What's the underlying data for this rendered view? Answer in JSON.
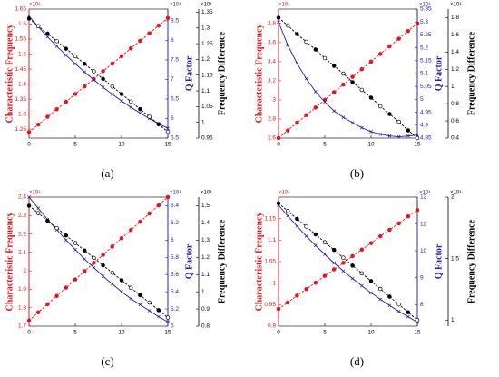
{
  "chart_data": [
    {
      "type": "line",
      "label": "(a)",
      "ylabel": "Characteristic Frequency",
      "y2label": "Q Factor",
      "y3label": "Frequency Difference",
      "ymultiplier": "×10⁴",
      "y2multiplier": "×10⁴",
      "y3multiplier": "×10⁴",
      "x": [
        0,
        1,
        2,
        3,
        4,
        5,
        6,
        7,
        8,
        9,
        10,
        11,
        12,
        13,
        14,
        15
      ],
      "xlim": [
        0,
        15
      ],
      "xticks": [
        0,
        5,
        10,
        15
      ],
      "ylim": [
        1.22,
        1.65
      ],
      "yticks": [
        1.25,
        1.3,
        1.35,
        1.4,
        1.45,
        1.5,
        1.55,
        1.6,
        1.65
      ],
      "y2lim": [
        5.5,
        8.8
      ],
      "y2ticks": [
        5.5,
        6,
        6.5,
        7,
        7.5,
        8,
        8.5
      ],
      "y3lim": [
        0.95,
        1.36
      ],
      "y3ticks": [
        0.95,
        1,
        1.05,
        1.1,
        1.15,
        1.2,
        1.25,
        1.3,
        1.35
      ],
      "series": [
        {
          "color": "#e8141b",
          "axis": "y",
          "values": [
            1.24,
            1.265,
            1.291,
            1.316,
            1.341,
            1.367,
            1.392,
            1.417,
            1.443,
            1.468,
            1.493,
            1.519,
            1.544,
            1.569,
            1.595,
            1.62
          ]
        },
        {
          "color": "#1d1db8",
          "axis": "y2",
          "values": [
            8.62,
            8.35,
            8.09,
            7.85,
            7.62,
            7.4,
            7.19,
            6.99,
            6.8,
            6.62,
            6.45,
            6.29,
            6.14,
            6.0,
            5.87,
            5.75
          ]
        },
        {
          "color": "#000000",
          "axis": "y3",
          "values": [
            1.33,
            1.306,
            1.282,
            1.258,
            1.234,
            1.21,
            1.186,
            1.162,
            1.138,
            1.114,
            1.09,
            1.066,
            1.042,
            1.018,
            0.994,
            0.97
          ]
        }
      ]
    },
    {
      "type": "line",
      "label": "(b)",
      "ylabel": "Characteristic Frequency",
      "y2label": "Q Factor",
      "y3label": "Frequency Difference",
      "ymultiplier": "×10⁴",
      "y2multiplier": "×10⁴",
      "y3multiplier": "×10⁴",
      "x": [
        0,
        1,
        2,
        3,
        4,
        5,
        6,
        7,
        8,
        9,
        10,
        11,
        12,
        13,
        14,
        15
      ],
      "xlim": [
        0,
        15
      ],
      "xticks": [
        0,
        5,
        10,
        15
      ],
      "ylim": [
        2.6,
        3.95
      ],
      "yticks": [
        2.6,
        2.8,
        3,
        3.2,
        3.4,
        3.6,
        3.8
      ],
      "y2lim": [
        4.85,
        5.35
      ],
      "y2ticks": [
        4.85,
        4.9,
        4.95,
        5,
        5.05,
        5.1,
        5.15,
        5.2,
        5.25,
        5.3,
        5.35
      ],
      "y3lim": [
        0.4,
        1.9
      ],
      "y3ticks": [
        0.4,
        0.6,
        0.8,
        1,
        1.2,
        1.4,
        1.6,
        1.8
      ],
      "series": [
        {
          "color": "#e8141b",
          "axis": "y",
          "values": [
            2.6,
            2.68,
            2.76,
            2.84,
            2.92,
            3.0,
            3.08,
            3.16,
            3.24,
            3.32,
            3.4,
            3.48,
            3.56,
            3.64,
            3.72,
            3.8
          ]
        },
        {
          "color": "#1d1db8",
          "axis": "y2",
          "values": [
            5.3,
            5.21,
            5.14,
            5.08,
            5.03,
            4.99,
            4.955,
            4.93,
            4.91,
            4.89,
            4.875,
            4.865,
            4.858,
            4.855,
            4.858,
            4.862
          ]
        },
        {
          "color": "#000000",
          "axis": "y3",
          "values": [
            1.8,
            1.71,
            1.61,
            1.52,
            1.43,
            1.33,
            1.24,
            1.15,
            1.05,
            0.96,
            0.87,
            0.77,
            0.68,
            0.59,
            0.49,
            0.4
          ]
        }
      ]
    },
    {
      "type": "line",
      "label": "(c)",
      "ylabel": "Characteristic Frequency",
      "y2label": "Q Factor",
      "y3label": "Frequency Difference",
      "ymultiplier": "×10⁴",
      "y2multiplier": "×10⁴",
      "y3multiplier": "×10⁴",
      "x": [
        0,
        1,
        2,
        3,
        4,
        5,
        6,
        7,
        8,
        9,
        10,
        11,
        12,
        13,
        14,
        15
      ],
      "xlim": [
        0,
        15
      ],
      "xticks": [
        0,
        5,
        10,
        15
      ],
      "ylim": [
        1.7,
        2.4
      ],
      "yticks": [
        1.7,
        1.8,
        1.9,
        2,
        2.1,
        2.2,
        2.3,
        2.4
      ],
      "y2lim": [
        5,
        6.5
      ],
      "y2ticks": [
        5,
        5.2,
        5.4,
        5.6,
        5.8,
        6,
        6.2,
        6.4
      ],
      "y3lim": [
        0.8,
        1.55
      ],
      "y3ticks": [
        0.8,
        0.9,
        1,
        1.1,
        1.2,
        1.3,
        1.4,
        1.5
      ],
      "series": [
        {
          "color": "#e8141b",
          "axis": "y",
          "values": [
            1.73,
            1.775,
            1.819,
            1.864,
            1.909,
            1.953,
            1.998,
            2.043,
            2.087,
            2.132,
            2.177,
            2.221,
            2.266,
            2.311,
            2.355,
            2.4
          ]
        },
        {
          "color": "#1d1db8",
          "axis": "y2",
          "values": [
            6.5,
            6.37,
            6.24,
            6.12,
            6.0,
            5.89,
            5.78,
            5.68,
            5.58,
            5.49,
            5.4,
            5.32,
            5.25,
            5.18,
            5.11,
            5.05
          ]
        },
        {
          "color": "#000000",
          "axis": "y3",
          "values": [
            1.5,
            1.457,
            1.413,
            1.37,
            1.327,
            1.283,
            1.24,
            1.197,
            1.153,
            1.11,
            1.067,
            1.023,
            0.98,
            0.937,
            0.893,
            0.85
          ]
        }
      ]
    },
    {
      "type": "line",
      "label": "(d)",
      "ylabel": "Characteristic Frequency",
      "y2label": "Q Factor",
      "y3label": "Frequency Difference",
      "ymultiplier": "×10⁴",
      "y2multiplier": "×10⁴",
      "y3multiplier": "×10⁴",
      "x": [
        0,
        1,
        2,
        3,
        4,
        5,
        6,
        7,
        8,
        9,
        10,
        11,
        12,
        13,
        14,
        15
      ],
      "xlim": [
        0,
        15
      ],
      "xticks": [
        0,
        5,
        10,
        15
      ],
      "ylim": [
        0.9,
        1.2
      ],
      "yticks": [
        0.9,
        0.95,
        1,
        1.05,
        1.1,
        1.15
      ],
      "y2lim": [
        7.2,
        12
      ],
      "y2ticks": [
        8,
        9,
        10,
        11,
        12
      ],
      "y3lim": [
        0.95,
        2
      ],
      "y3ticks": [
        1,
        1.5,
        2
      ],
      "series": [
        {
          "color": "#e8141b",
          "axis": "y",
          "values": [
            0.94,
            0.955,
            0.971,
            0.986,
            1.001,
            1.017,
            1.032,
            1.047,
            1.063,
            1.078,
            1.093,
            1.109,
            1.124,
            1.139,
            1.155,
            1.17
          ]
        },
        {
          "color": "#1d1db8",
          "axis": "y2",
          "values": [
            11.7,
            11.3,
            10.92,
            10.55,
            10.2,
            9.87,
            9.55,
            9.25,
            8.97,
            8.7,
            8.44,
            8.2,
            7.97,
            7.75,
            7.55,
            7.35
          ]
        },
        {
          "color": "#000000",
          "axis": "y3",
          "values": [
            1.95,
            1.887,
            1.823,
            1.76,
            1.697,
            1.633,
            1.57,
            1.507,
            1.443,
            1.38,
            1.317,
            1.253,
            1.19,
            1.127,
            1.063,
            1.0
          ]
        }
      ]
    }
  ]
}
